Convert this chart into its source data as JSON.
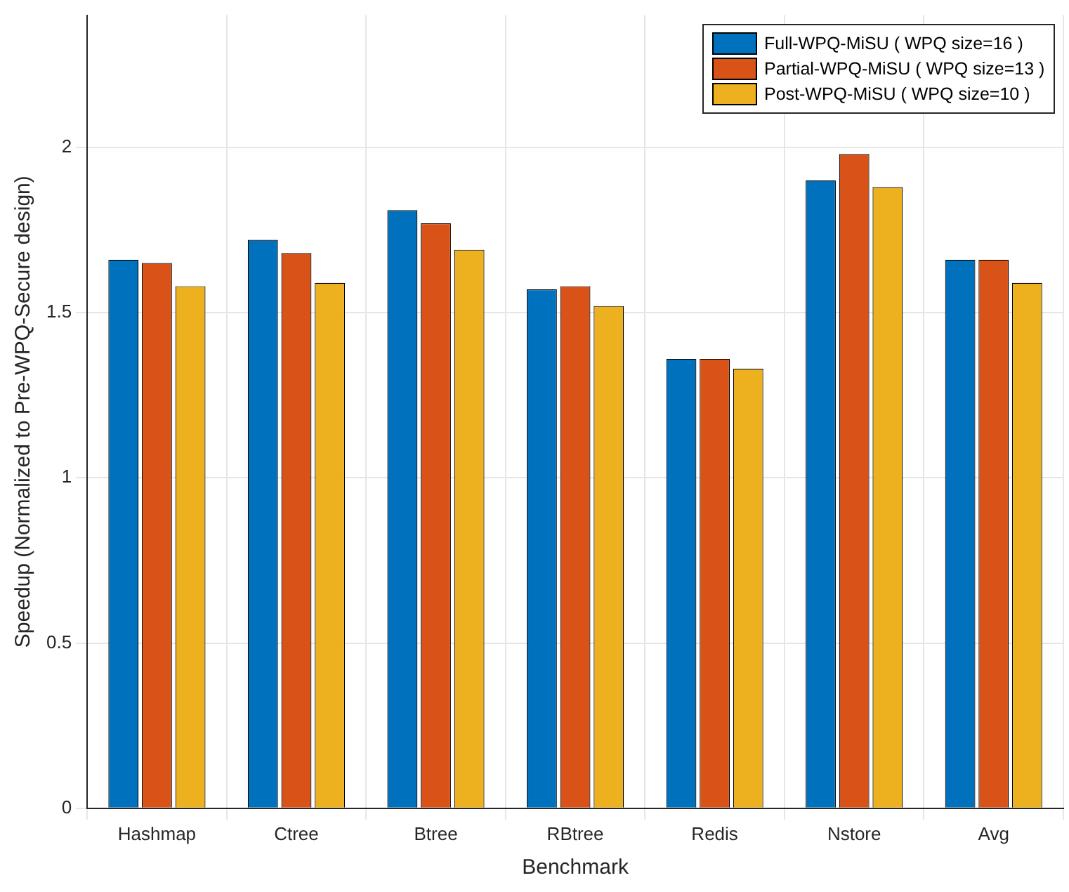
{
  "chart_data": {
    "type": "bar",
    "xlabel": "Benchmark",
    "ylabel": "Speedup (Normalized to Pre-WPQ-Secure design)",
    "categories": [
      "Hashmap",
      "Ctree",
      "Btree",
      "RBtree",
      "Redis",
      "Nstore",
      "Avg"
    ],
    "series": [
      {
        "name": "Full-WPQ-MiSU ( WPQ size=16 )",
        "color": "#0072bd",
        "values": [
          1.66,
          1.72,
          1.81,
          1.57,
          1.36,
          1.9,
          1.66
        ]
      },
      {
        "name": "Partial-WPQ-MiSU ( WPQ size=13 )",
        "color": "#d95319",
        "values": [
          1.65,
          1.68,
          1.77,
          1.58,
          1.36,
          1.98,
          1.66
        ]
      },
      {
        "name": "Post-WPQ-MiSU ( WPQ size=10 )",
        "color": "#edb120",
        "values": [
          1.58,
          1.59,
          1.69,
          1.52,
          1.33,
          1.88,
          1.59
        ]
      }
    ],
    "ylim": [
      0,
      2.4
    ],
    "yticks": [
      0,
      0.5,
      {
        "value": 1,
        "label": "1"
      },
      1.5,
      {
        "value": 2,
        "label": "2"
      }
    ],
    "grid": true,
    "legend": "top right"
  }
}
